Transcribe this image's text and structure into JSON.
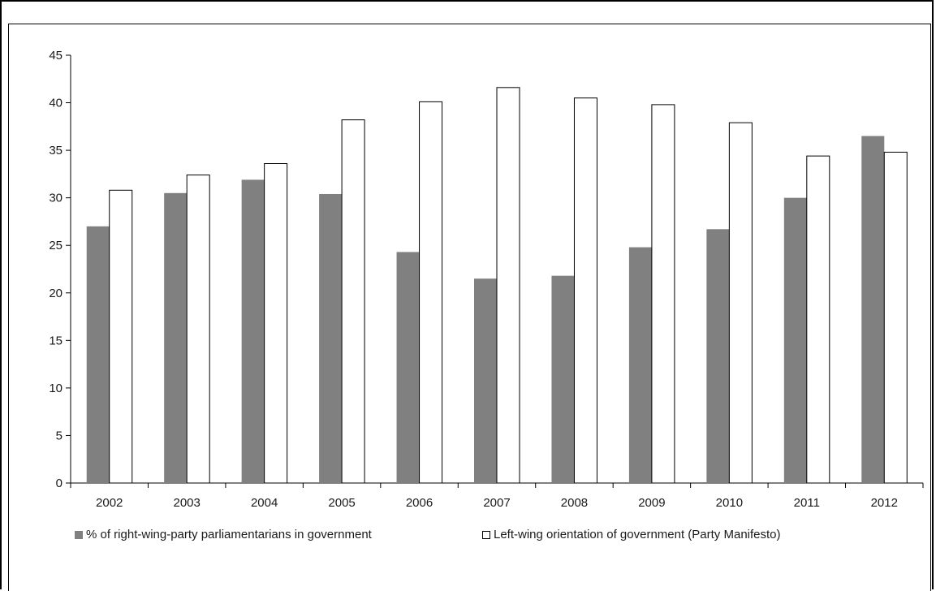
{
  "chart_data": {
    "type": "bar",
    "title": "",
    "xlabel": "",
    "ylabel": "",
    "categories": [
      "2002",
      "2003",
      "2004",
      "2005",
      "2006",
      "2007",
      "2008",
      "2009",
      "2010",
      "2011",
      "2012"
    ],
    "ylim": [
      0,
      45
    ],
    "yticks": [
      0,
      5,
      10,
      15,
      20,
      25,
      30,
      35,
      40,
      45
    ],
    "grid": false,
    "legend_position": "bottom",
    "series": [
      {
        "name": "% of right-wing-party parliamentarians in government",
        "color": "#808080",
        "values": [
          27.0,
          30.5,
          31.9,
          30.4,
          24.3,
          21.5,
          21.8,
          24.8,
          26.7,
          30.0,
          36.5
        ]
      },
      {
        "name": "Left-wing orientation of government (Party Manifesto)",
        "color": "#ffffff",
        "values": [
          30.8,
          32.4,
          33.6,
          38.2,
          40.1,
          41.6,
          40.5,
          39.8,
          37.9,
          34.4,
          34.8
        ]
      }
    ]
  }
}
